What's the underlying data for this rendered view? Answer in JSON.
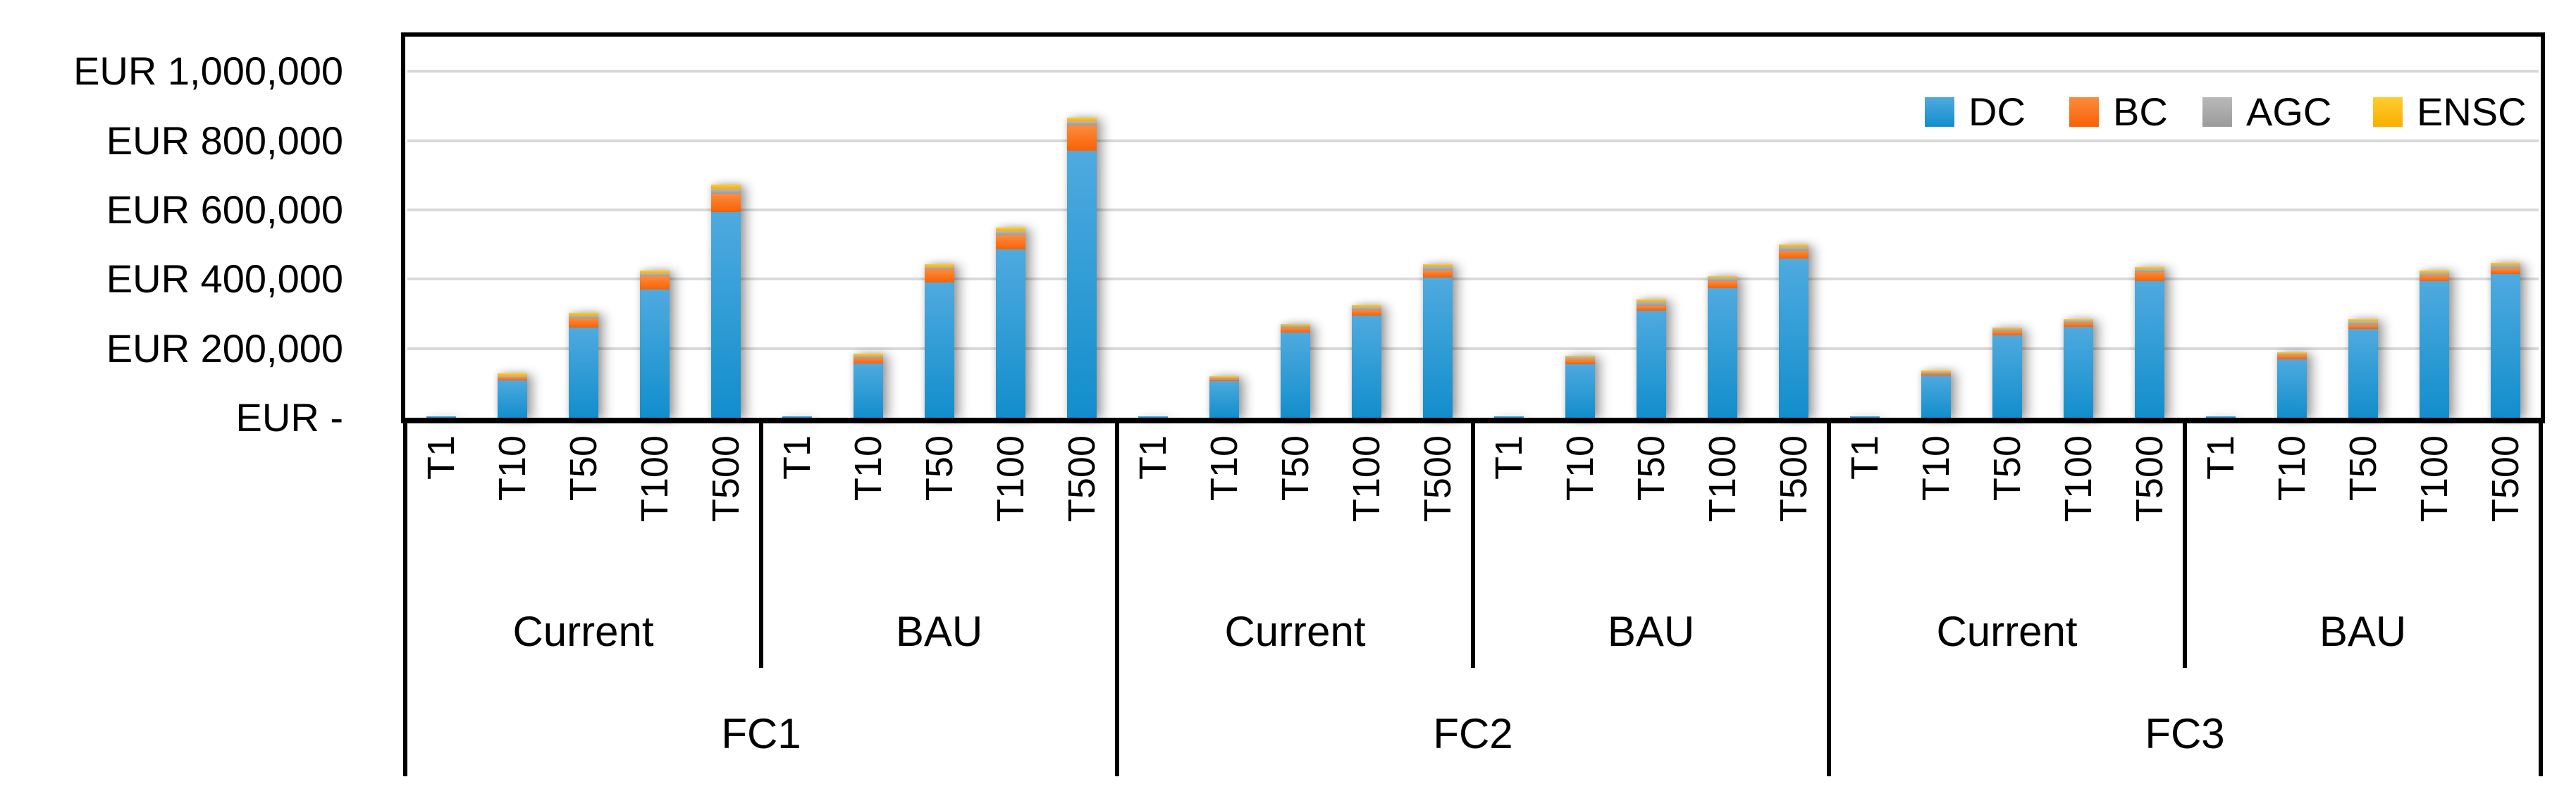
{
  "chart_data": {
    "type": "bar",
    "stacked": true,
    "grid": true,
    "legend_position": "top-right-inside",
    "currency_prefix": "EUR",
    "ylim": [
      0,
      1100000
    ],
    "yticks": [
      {
        "label": "EUR 1,000,000",
        "value": 1000000
      },
      {
        "label": "EUR 800,000",
        "value": 800000
      },
      {
        "label": "EUR 600,000",
        "value": 600000
      },
      {
        "label": "EUR 400,000",
        "value": 400000
      },
      {
        "label": "EUR 200,000",
        "value": 200000
      },
      {
        "label": "EUR -",
        "value": 0
      }
    ],
    "series": [
      {
        "name": "DC",
        "color": "#2398D6",
        "gradient": [
          "#4FAADF",
          "#128ECC"
        ]
      },
      {
        "name": "BC",
        "color": "#F97116",
        "gradient": [
          "#FB8C3E",
          "#F96204"
        ]
      },
      {
        "name": "AGC",
        "color": "#A6A6A6",
        "gradient": [
          "#B9B9B9",
          "#9B9B9B"
        ]
      },
      {
        "name": "ENSC",
        "color": "#FFC000",
        "gradient": [
          "#FFCD2E",
          "#F9AF00"
        ]
      }
    ],
    "categories": [
      "T1",
      "T10",
      "T50",
      "T100",
      "T500"
    ],
    "sections": [
      {
        "label": "FC1",
        "scenarios": [
          {
            "label": "Current",
            "stacks": [
              [
                3000,
                1000,
                500,
                500
              ],
              [
                107000,
                8000,
                5000,
                8000
              ],
              [
                260000,
                26000,
                8000,
                8000
              ],
              [
                370000,
                38000,
                9000,
                8000
              ],
              [
                594000,
                52000,
                15000,
                12000
              ]
            ]
          },
          {
            "label": "BAU",
            "stacks": [
              [
                3000,
                1000,
                500,
                500
              ],
              [
                156000,
                17000,
                5000,
                8000
              ],
              [
                391000,
                37000,
                8000,
                8000
              ],
              [
                485000,
                42000,
                11000,
                10000
              ],
              [
                770000,
                73000,
                12000,
                12000
              ]
            ]
          }
        ]
      },
      {
        "label": "FC2",
        "scenarios": [
          {
            "label": "Current",
            "stacks": [
              [
                3000,
                1000,
                500,
                500
              ],
              [
                105000,
                7000,
                4000,
                4000
              ],
              [
                245000,
                15000,
                7000,
                4000
              ],
              [
                295000,
                16000,
                9000,
                5000
              ],
              [
                405000,
                20000,
                12000,
                6000
              ]
            ]
          },
          {
            "label": "BAU",
            "stacks": [
              [
                3000,
                1000,
                500,
                500
              ],
              [
                155000,
                13000,
                7000,
                4000
              ],
              [
                310000,
                14000,
                12000,
                5000
              ],
              [
                375000,
                19000,
                10000,
                5000
              ],
              [
                460000,
                22000,
                12000,
                7000
              ]
            ]
          }
        ]
      },
      {
        "label": "FC3",
        "scenarios": [
          {
            "label": "Current",
            "stacks": [
              [
                3000,
                1000,
                500,
                500
              ],
              [
                121000,
                7000,
                4000,
                4000
              ],
              [
                238000,
                12000,
                6000,
                4000
              ],
              [
                263000,
                12000,
                6000,
                4000
              ],
              [
                395000,
                25000,
                10000,
                5000
              ]
            ]
          },
          {
            "label": "BAU",
            "stacks": [
              [
                3000,
                1000,
                500,
                500
              ],
              [
                168000,
                12000,
                6000,
                4000
              ],
              [
                257000,
                12000,
                10000,
                5000
              ],
              [
                395000,
                16000,
                8000,
                5000
              ],
              [
                415000,
                15000,
                12000,
                6000
              ]
            ]
          }
        ]
      }
    ]
  }
}
